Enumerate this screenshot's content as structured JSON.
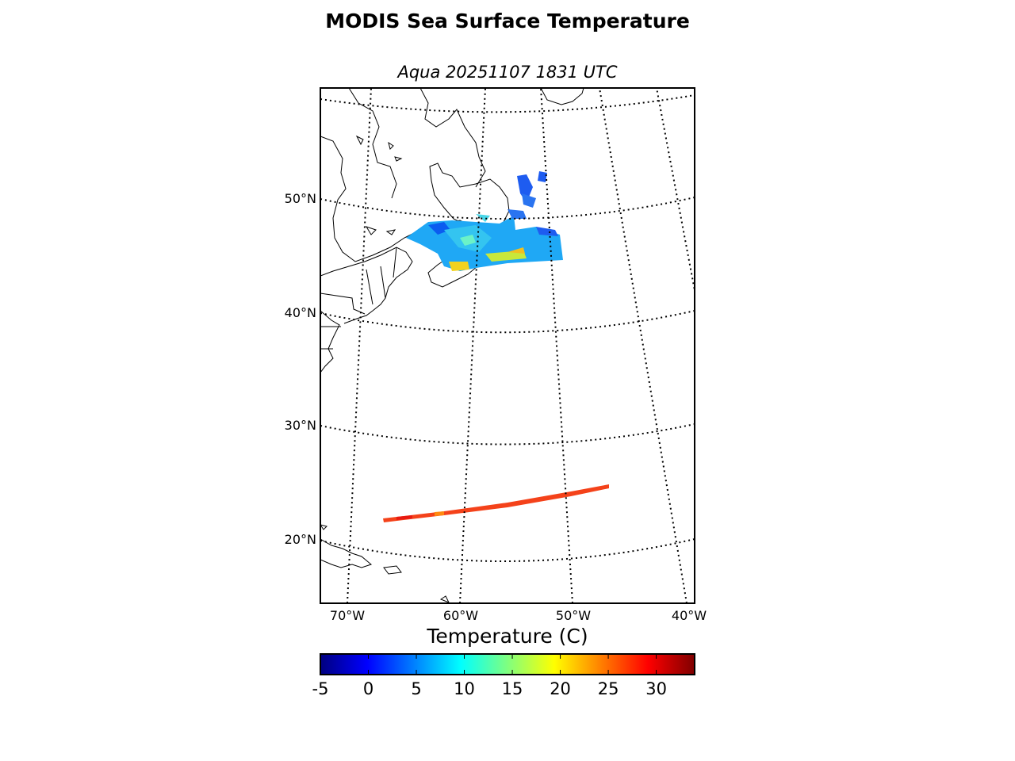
{
  "title": "MODIS Sea Surface Temperature",
  "subtitle": "Aqua 20251107 1831 UTC",
  "map": {
    "projection": "lambert-conformal",
    "lon_range": [
      -72,
      -38
    ],
    "lat_range": [
      14,
      60
    ],
    "parallels": [
      20,
      30,
      40,
      50
    ],
    "meridians": [
      -70,
      -60,
      -50,
      -40
    ],
    "lat_labels": [
      "20°N",
      "30°N",
      "40°N",
      "50°N"
    ],
    "lon_labels": [
      "70°W",
      "60°W",
      "50°W",
      "40°W"
    ],
    "graticule_style": "dotted",
    "coastline_color": "#000000"
  },
  "colorbar": {
    "label": "Temperature (C)",
    "min": -5,
    "max": 34,
    "colormap": "jet",
    "ticks": [
      -5,
      0,
      5,
      10,
      15,
      20,
      25,
      30
    ],
    "tick_labels": [
      "-5",
      "0",
      "5",
      "10",
      "15",
      "20",
      "25",
      "30"
    ]
  },
  "data_swaths": [
    {
      "region": "Gulf of St. Lawrence / Nova Scotia",
      "sst_range_c": [
        0,
        18
      ]
    },
    {
      "region": "Subtropical Atlantic track",
      "sst_range_c": [
        25,
        29
      ]
    }
  ]
}
